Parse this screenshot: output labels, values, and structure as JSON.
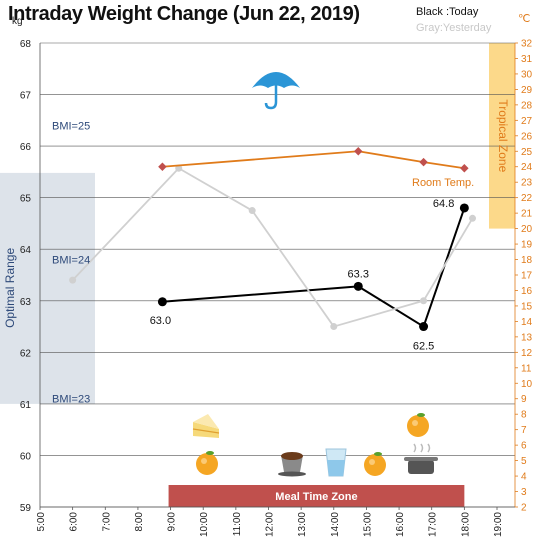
{
  "header": {
    "title": "Intraday Weight Change (Jun 22, 2019)",
    "legend_today": "Black :Today",
    "legend_yesterday": "Gray:Yesterday",
    "unit_left": "kg",
    "unit_right": "℃"
  },
  "chart_data": {
    "type": "line",
    "title": "Intraday Weight Change (Jun 22, 2019)",
    "x_ticks": [
      "5:00",
      "6:00",
      "7:00",
      "8:00",
      "9:00",
      "10:00",
      "11:00",
      "12:00",
      "13:00",
      "14:00",
      "15:00",
      "16:00",
      "17:00",
      "18:00",
      "19:00"
    ],
    "y_left": {
      "label": "kg",
      "ylim": [
        59,
        68
      ],
      "ticks": [
        59,
        60,
        61,
        62,
        63,
        64,
        65,
        66,
        67,
        68
      ]
    },
    "y_right": {
      "label": "℃",
      "ylim": [
        2,
        32
      ],
      "ticks": [
        2,
        3,
        4,
        5,
        6,
        7,
        8,
        9,
        10,
        11,
        12,
        13,
        14,
        15,
        16,
        17,
        18,
        19,
        20,
        21,
        22,
        23,
        24,
        25,
        26,
        27,
        28,
        29,
        30,
        31,
        32
      ]
    },
    "grid": true,
    "series": [
      {
        "name": "Today",
        "color": "#000000",
        "x": [
          "8:45",
          "14:45",
          "16:45",
          "18:00"
        ],
        "values": [
          62.98,
          63.28,
          62.5,
          64.8
        ],
        "labels": [
          "63.0",
          "63.3",
          "62.5",
          "64.8"
        ]
      },
      {
        "name": "Yesterday",
        "color": "#d0d0d0",
        "x": [
          "6:00",
          "9:15",
          "11:30",
          "14:00",
          "16:45",
          "18:15"
        ],
        "values": [
          63.4,
          65.57,
          64.75,
          62.5,
          63.0,
          64.6
        ]
      },
      {
        "name": "Room Temp.",
        "color": "#e07b1a",
        "axis": "right",
        "x": [
          "8:45",
          "14:45",
          "16:45",
          "18:00"
        ],
        "values": [
          24.0,
          25.0,
          24.3,
          23.9
        ]
      }
    ],
    "bands": [
      {
        "label": "Optimal Range",
        "axis": "left",
        "range": [
          61.0,
          65.5
        ],
        "color": "#dde3ea"
      },
      {
        "label": "Tropical Zone",
        "axis": "right",
        "range": [
          20,
          32
        ],
        "color": "#fcd98a"
      },
      {
        "label": "Meal Time Zone",
        "axis": "x",
        "range": [
          "9:00",
          "18:00"
        ],
        "color": "#c0504d"
      }
    ],
    "annotations": [
      {
        "text": "BMI=25",
        "y": 66.4
      },
      {
        "text": "BMI=24",
        "y": 63.8
      },
      {
        "text": "BMI=23",
        "y": 61.1
      },
      {
        "text": "Room Temp.",
        "series": "Room Temp."
      }
    ],
    "icons": [
      "umbrella-icon",
      "cake-icon",
      "orange-icon",
      "coffee-icon",
      "water-glass-icon",
      "orange-icon",
      "pot-icon",
      "orange-icon"
    ]
  }
}
